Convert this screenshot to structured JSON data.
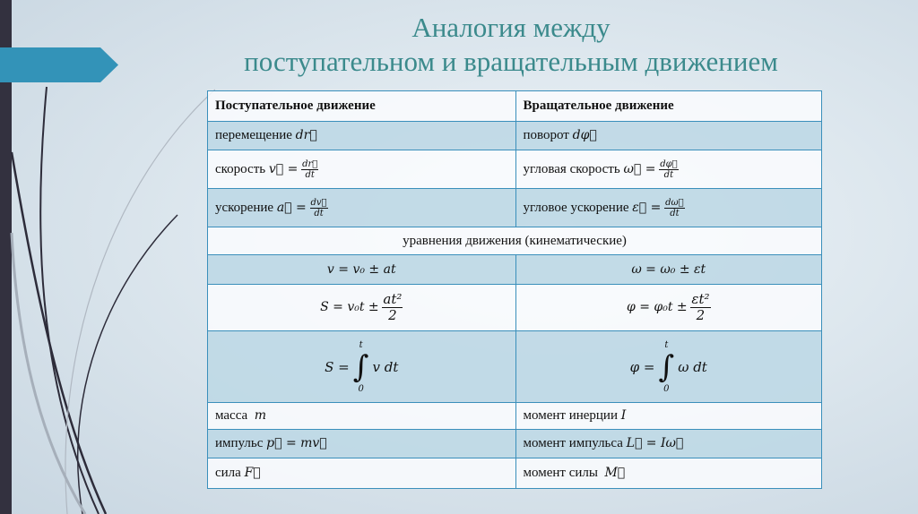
{
  "title": {
    "line1": "Аналогия между",
    "line2": "поступательном и вращательным движением"
  },
  "colors": {
    "accent": "#3393b8",
    "title": "#3b8a8c",
    "border": "#3a8fbb",
    "sidebar": "#33313f"
  },
  "table": {
    "headers": [
      "Поступательное движение",
      "Вращательное движение"
    ],
    "rows": [
      {
        "left_label": "перемещение",
        "left_formula": "dr⃗",
        "right_label": "поворот",
        "right_formula": "dφ⃗"
      },
      {
        "left_label": "скорость",
        "left_formula": "v⃗ =",
        "left_num": "dr⃗",
        "left_den": "dt",
        "right_label": "угловая скорость",
        "right_formula": "ω⃗ =",
        "right_num": "dφ⃗",
        "right_den": "dt"
      },
      {
        "left_label": "ускорение",
        "left_formula": "a⃗ =",
        "left_num": "dv⃗",
        "left_den": "dt",
        "right_label": "угловое ускорение",
        "right_formula": "ε⃗ =",
        "right_num": "dω⃗",
        "right_den": "dt"
      }
    ],
    "section": "уравнения движения (кинематические)",
    "eq1": {
      "left": "v = v₀ ± at",
      "right": "ω = ω₀ ± εt"
    },
    "eq2": {
      "left": "S = v₀t ±",
      "left_num": "at²",
      "right": "φ = φ₀t ±",
      "right_num": "εt²",
      "den": "2"
    },
    "eq3": {
      "left": "S =",
      "left_body": "v dt",
      "right": "φ =",
      "right_body": "ω dt",
      "upper": "t",
      "lower": "0",
      "sign": "∫"
    },
    "rows2": [
      {
        "left_label": "масса",
        "left_formula": "m",
        "right_label": "момент инерции",
        "right_formula": "I"
      },
      {
        "left_label": "импульс",
        "left_formula": "p⃗ = mv⃗",
        "right_label": "момент импульса",
        "right_formula": "L⃗ = Iω⃗"
      },
      {
        "left_label": "сила",
        "left_formula": "F⃗",
        "right_label": "момент силы",
        "right_formula": "M⃗"
      }
    ]
  }
}
